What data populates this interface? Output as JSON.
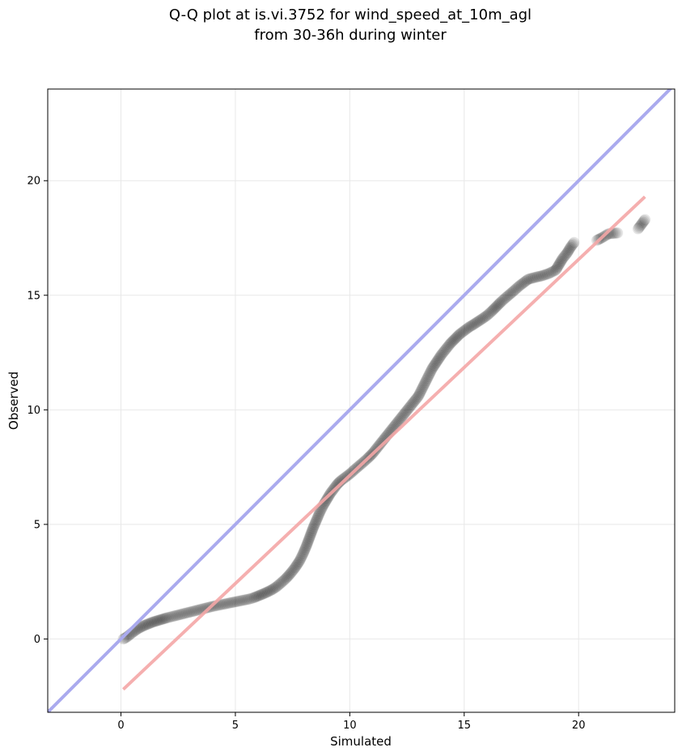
{
  "chart_data": {
    "type": "scatter",
    "title": [
      "Q-Q plot at is.vi.3752 for wind_speed_at_10m_agl",
      "from 30-36h during winter"
    ],
    "xlabel": "Simulated",
    "ylabel": "Observed",
    "xlim": [
      -3.2,
      24.2
    ],
    "ylim": [
      -3.2,
      24.0
    ],
    "xticks": [
      0,
      5,
      10,
      15,
      20
    ],
    "yticks": [
      0,
      5,
      10,
      15,
      20
    ],
    "grid": true,
    "colors": {
      "points": "#000000",
      "identity_line": "#aaaaee",
      "fit_line": "#f4a6a6",
      "grid": "#e8e8e8"
    },
    "identity_line": [
      [
        -3.2,
        -3.2
      ],
      [
        24.2,
        24.2
      ]
    ],
    "fit_line": [
      [
        0.1,
        -2.2
      ],
      [
        22.9,
        19.3
      ]
    ],
    "series": [
      {
        "points": [
          [
            0.1,
            0.0
          ],
          [
            0.2,
            0.05
          ],
          [
            0.3,
            0.12
          ],
          [
            0.4,
            0.2
          ],
          [
            0.5,
            0.28
          ],
          [
            0.6,
            0.35
          ],
          [
            0.7,
            0.42
          ],
          [
            0.8,
            0.48
          ],
          [
            0.9,
            0.53
          ],
          [
            1.0,
            0.58
          ],
          [
            1.1,
            0.62
          ],
          [
            1.2,
            0.66
          ],
          [
            1.3,
            0.7
          ],
          [
            1.4,
            0.74
          ],
          [
            1.5,
            0.77
          ],
          [
            1.6,
            0.8
          ],
          [
            1.7,
            0.83
          ],
          [
            1.8,
            0.86
          ],
          [
            1.9,
            0.89
          ],
          [
            2.0,
            0.92
          ],
          [
            2.2,
            0.97
          ],
          [
            2.4,
            1.02
          ],
          [
            2.6,
            1.07
          ],
          [
            2.8,
            1.12
          ],
          [
            3.0,
            1.17
          ],
          [
            3.2,
            1.22
          ],
          [
            3.4,
            1.27
          ],
          [
            3.6,
            1.32
          ],
          [
            3.8,
            1.37
          ],
          [
            4.0,
            1.42
          ],
          [
            4.2,
            1.46
          ],
          [
            4.4,
            1.5
          ],
          [
            4.6,
            1.54
          ],
          [
            4.8,
            1.58
          ],
          [
            5.0,
            1.62
          ],
          [
            5.2,
            1.66
          ],
          [
            5.4,
            1.7
          ],
          [
            5.6,
            1.74
          ],
          [
            5.8,
            1.8
          ],
          [
            6.0,
            1.88
          ],
          [
            6.2,
            1.96
          ],
          [
            6.4,
            2.05
          ],
          [
            6.6,
            2.15
          ],
          [
            6.8,
            2.28
          ],
          [
            7.0,
            2.45
          ],
          [
            7.2,
            2.63
          ],
          [
            7.4,
            2.85
          ],
          [
            7.6,
            3.1
          ],
          [
            7.8,
            3.4
          ],
          [
            7.95,
            3.7
          ],
          [
            8.1,
            4.05
          ],
          [
            8.25,
            4.45
          ],
          [
            8.4,
            4.85
          ],
          [
            8.55,
            5.2
          ],
          [
            8.7,
            5.55
          ],
          [
            8.85,
            5.85
          ],
          [
            9.0,
            6.1
          ],
          [
            9.15,
            6.35
          ],
          [
            9.3,
            6.55
          ],
          [
            9.45,
            6.75
          ],
          [
            9.6,
            6.9
          ],
          [
            9.8,
            7.05
          ],
          [
            10.0,
            7.2
          ],
          [
            10.2,
            7.38
          ],
          [
            10.4,
            7.55
          ],
          [
            10.6,
            7.72
          ],
          [
            10.8,
            7.9
          ],
          [
            11.0,
            8.1
          ],
          [
            11.2,
            8.35
          ],
          [
            11.4,
            8.6
          ],
          [
            11.6,
            8.85
          ],
          [
            11.8,
            9.1
          ],
          [
            12.0,
            9.35
          ],
          [
            12.2,
            9.6
          ],
          [
            12.4,
            9.85
          ],
          [
            12.6,
            10.1
          ],
          [
            12.8,
            10.35
          ],
          [
            13.0,
            10.6
          ],
          [
            13.15,
            10.9
          ],
          [
            13.3,
            11.2
          ],
          [
            13.45,
            11.5
          ],
          [
            13.6,
            11.8
          ],
          [
            13.8,
            12.1
          ],
          [
            14.0,
            12.4
          ],
          [
            14.2,
            12.65
          ],
          [
            14.4,
            12.9
          ],
          [
            14.6,
            13.1
          ],
          [
            14.8,
            13.3
          ],
          [
            15.0,
            13.45
          ],
          [
            15.2,
            13.6
          ],
          [
            15.4,
            13.72
          ],
          [
            15.6,
            13.85
          ],
          [
            15.8,
            13.98
          ],
          [
            16.0,
            14.12
          ],
          [
            16.2,
            14.3
          ],
          [
            16.4,
            14.5
          ],
          [
            16.6,
            14.7
          ],
          [
            16.8,
            14.88
          ],
          [
            17.0,
            15.05
          ],
          [
            17.2,
            15.22
          ],
          [
            17.4,
            15.4
          ],
          [
            17.6,
            15.55
          ],
          [
            17.8,
            15.7
          ],
          [
            18.1,
            15.78
          ],
          [
            18.4,
            15.85
          ],
          [
            18.7,
            15.95
          ],
          [
            19.0,
            16.1
          ],
          [
            19.15,
            16.35
          ],
          [
            19.3,
            16.6
          ],
          [
            19.5,
            16.85
          ],
          [
            19.65,
            17.1
          ],
          [
            19.8,
            17.3
          ],
          [
            20.8,
            17.4
          ],
          [
            21.0,
            17.5
          ],
          [
            21.3,
            17.68
          ],
          [
            21.7,
            17.72
          ],
          [
            22.6,
            17.9
          ],
          [
            22.9,
            18.3
          ]
        ]
      }
    ]
  }
}
